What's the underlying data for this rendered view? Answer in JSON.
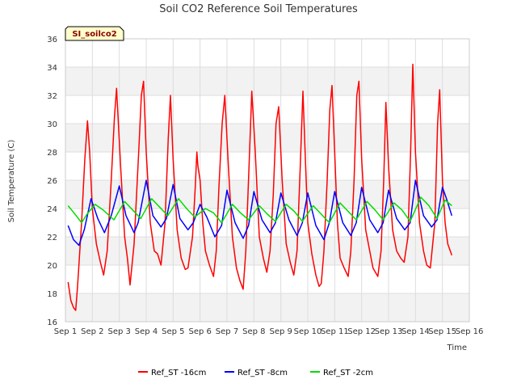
{
  "chart_data": {
    "type": "line",
    "title": "Soil CO2 Reference Soil Temperatures",
    "xlabel": "Time",
    "ylabel": "Soil Temperature (C)",
    "site_label": "SI_soilco2",
    "xlim": [
      1,
      16
    ],
    "ylim": [
      16,
      36
    ],
    "x_ticks": [
      1,
      2,
      3,
      4,
      5,
      6,
      7,
      8,
      9,
      10,
      11,
      12,
      13,
      14,
      15,
      16
    ],
    "x_tick_labels": [
      "Sep 1",
      "Sep 2",
      "Sep 3",
      "Sep 4",
      "Sep 5",
      "Sep 6",
      "Sep 7",
      "Sep 8",
      "Sep 9",
      "Sep 10",
      "Sep 11",
      "Sep 12",
      "Sep 13",
      "Sep 14",
      "Sep 15",
      "Sep 16"
    ],
    "y_ticks": [
      16,
      18,
      20,
      22,
      24,
      26,
      28,
      30,
      32,
      34,
      36
    ],
    "y_tick_labels": [
      "16",
      "18",
      "20",
      "22",
      "24",
      "26",
      "28",
      "30",
      "32",
      "34",
      "36"
    ],
    "grid": true,
    "legend_position": "bottom",
    "series": [
      {
        "name": "Ref_ST -16cm",
        "color": "#ff0000",
        "x": [
          1.1,
          1.2,
          1.3,
          1.38,
          1.45,
          1.6,
          1.72,
          1.82,
          1.9,
          2.0,
          2.15,
          2.3,
          2.42,
          2.55,
          2.7,
          2.82,
          2.9,
          3.05,
          3.2,
          3.3,
          3.4,
          3.55,
          3.72,
          3.82,
          3.9,
          4.0,
          4.15,
          4.3,
          4.42,
          4.55,
          4.7,
          4.82,
          4.9,
          5.0,
          5.15,
          5.3,
          5.45,
          5.55,
          5.72,
          5.82,
          5.88,
          5.92,
          6.0,
          6.1,
          6.2,
          6.35,
          6.5,
          6.6,
          6.7,
          6.82,
          6.92,
          7.05,
          7.2,
          7.35,
          7.48,
          7.6,
          7.7,
          7.82,
          7.92,
          8.05,
          8.2,
          8.35,
          8.48,
          8.6,
          8.72,
          8.82,
          8.92,
          9.05,
          9.2,
          9.35,
          9.48,
          9.6,
          9.72,
          9.82,
          9.9,
          10.0,
          10.15,
          10.3,
          10.42,
          10.5,
          10.6,
          10.72,
          10.82,
          10.9,
          11.0,
          11.1,
          11.2,
          11.35,
          11.5,
          11.6,
          11.72,
          11.82,
          11.9,
          12.0,
          12.15,
          12.3,
          12.42,
          12.6,
          12.72,
          12.82,
          12.9,
          13.0,
          13.15,
          13.3,
          13.45,
          13.58,
          13.72,
          13.82,
          13.9,
          14.0,
          14.15,
          14.3,
          14.42,
          14.55,
          14.72,
          14.82,
          14.9,
          15.0,
          15.1,
          15.2,
          15.35
        ],
        "y": [
          18.8,
          17.5,
          17.0,
          16.8,
          18.5,
          23.0,
          27.5,
          30.2,
          28.0,
          24.0,
          21.5,
          20.2,
          19.3,
          21.0,
          26.0,
          30.5,
          32.5,
          27.0,
          22.0,
          20.5,
          18.6,
          21.5,
          28.0,
          32.0,
          33.0,
          28.0,
          23.0,
          21.0,
          20.8,
          20.0,
          23.0,
          29.0,
          32.0,
          27.5,
          22.5,
          20.5,
          19.7,
          19.8,
          22.0,
          25.5,
          28.0,
          27.0,
          26.0,
          23.0,
          21.0,
          20.0,
          19.2,
          21.0,
          25.5,
          30.0,
          32.0,
          27.0,
          22.0,
          19.8,
          18.9,
          18.3,
          21.0,
          27.0,
          32.3,
          28.0,
          22.0,
          20.5,
          19.5,
          21.0,
          25.0,
          30.0,
          31.2,
          26.0,
          21.5,
          20.2,
          19.3,
          21.0,
          27.0,
          32.3,
          28.0,
          23.0,
          20.8,
          19.3,
          18.5,
          18.7,
          21.0,
          26.0,
          31.0,
          32.7,
          28.0,
          23.0,
          20.5,
          19.8,
          19.2,
          21.0,
          26.0,
          32.0,
          33.0,
          27.5,
          22.5,
          21.0,
          19.8,
          19.2,
          21.0,
          26.0,
          31.5,
          27.0,
          22.5,
          21.0,
          20.5,
          20.2,
          22.0,
          28.0,
          34.2,
          28.0,
          23.0,
          21.0,
          20.0,
          19.8,
          23.0,
          30.0,
          32.4,
          26.0,
          23.0,
          21.5,
          20.7
        ]
      },
      {
        "name": "Ref_ST -8cm",
        "color": "#0000ff",
        "x": [
          1.1,
          1.3,
          1.5,
          1.7,
          1.95,
          2.2,
          2.45,
          2.7,
          3.0,
          3.25,
          3.55,
          3.7,
          4.0,
          4.25,
          4.55,
          4.75,
          5.0,
          5.25,
          5.55,
          5.75,
          6.0,
          6.25,
          6.55,
          6.8,
          7.0,
          7.3,
          7.6,
          7.8,
          8.0,
          8.3,
          8.6,
          8.8,
          9.0,
          9.3,
          9.6,
          9.8,
          10.0,
          10.3,
          10.6,
          10.8,
          11.0,
          11.3,
          11.6,
          11.8,
          12.0,
          12.3,
          12.6,
          12.8,
          13.0,
          13.3,
          13.6,
          13.8,
          14.0,
          14.3,
          14.6,
          14.8,
          15.0,
          15.15,
          15.35
        ],
        "y": [
          22.8,
          21.8,
          21.4,
          22.5,
          24.7,
          23.3,
          22.3,
          23.5,
          25.6,
          23.5,
          22.3,
          23.0,
          26.0,
          23.5,
          22.7,
          23.3,
          25.7,
          23.3,
          22.5,
          23.0,
          24.3,
          23.4,
          22.0,
          22.8,
          25.3,
          23.0,
          21.9,
          22.8,
          25.2,
          23.2,
          22.3,
          23.0,
          25.1,
          23.2,
          22.1,
          23.0,
          25.1,
          22.8,
          21.8,
          23.0,
          25.2,
          23.0,
          22.1,
          23.0,
          25.5,
          23.2,
          22.3,
          23.0,
          25.3,
          23.3,
          22.5,
          23.0,
          26.0,
          23.5,
          22.7,
          23.2,
          25.5,
          24.7,
          23.5
        ]
      },
      {
        "name": "Ref_ST -2cm",
        "color": "#00dd00",
        "x": [
          1.1,
          1.4,
          1.6,
          1.8,
          2.1,
          2.4,
          2.8,
          3.2,
          3.5,
          3.8,
          4.2,
          4.5,
          4.8,
          5.2,
          5.5,
          5.8,
          6.2,
          6.5,
          6.8,
          7.2,
          7.5,
          7.8,
          8.2,
          8.5,
          8.8,
          9.2,
          9.5,
          9.8,
          10.2,
          10.5,
          10.8,
          11.2,
          11.5,
          11.8,
          12.2,
          12.5,
          12.8,
          13.2,
          13.5,
          13.8,
          14.2,
          14.5,
          14.8,
          15.1,
          15.35
        ],
        "y": [
          24.2,
          23.5,
          23.0,
          23.6,
          24.3,
          23.9,
          23.2,
          24.5,
          23.9,
          23.3,
          24.7,
          24.1,
          23.5,
          24.7,
          24.0,
          23.4,
          24.0,
          23.7,
          23.0,
          24.3,
          23.7,
          23.2,
          24.2,
          23.6,
          23.1,
          24.3,
          23.8,
          23.1,
          24.2,
          23.6,
          23.0,
          24.4,
          23.8,
          23.2,
          24.5,
          23.9,
          23.2,
          24.4,
          23.9,
          23.1,
          24.8,
          24.2,
          23.3,
          24.6,
          24.2
        ]
      }
    ]
  }
}
